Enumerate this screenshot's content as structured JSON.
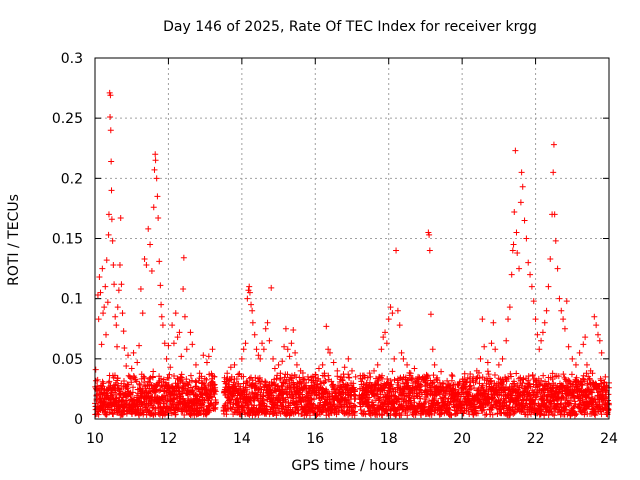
{
  "chart_data": {
    "type": "scatter",
    "title": "Day 146 of 2025, Rate Of TEC Index for receiver krgg",
    "xlabel": "GPS time / hours",
    "ylabel": "ROTI / TECUs",
    "xlim": [
      10,
      24
    ],
    "ylim": [
      0,
      0.3
    ],
    "x_ticks": [
      10,
      12,
      14,
      16,
      18,
      20,
      22,
      24
    ],
    "x_tick_labels": [
      "10",
      "12",
      "14",
      "16",
      "18",
      "20",
      "22",
      "24"
    ],
    "y_ticks": [
      0,
      0.05,
      0.1,
      0.15,
      0.2,
      0.25,
      0.3
    ],
    "y_tick_labels": [
      "0",
      "0.05",
      "0.1",
      "0.15",
      "0.2",
      "0.25",
      "0.3"
    ],
    "grid": true,
    "marker": "plus",
    "color": "#ff0000",
    "series": [
      {
        "points": [
          [
            10.02,
            0.041
          ],
          [
            10.05,
            0.02
          ],
          [
            10.08,
            0.103
          ],
          [
            10.1,
            0.083
          ],
          [
            10.12,
            0.118
          ],
          [
            10.15,
            0.105
          ],
          [
            10.18,
            0.062
          ],
          [
            10.2,
            0.125
          ],
          [
            10.22,
            0.088
          ],
          [
            10.25,
            0.093
          ],
          [
            10.28,
            0.11
          ],
          [
            10.3,
            0.07
          ],
          [
            10.32,
            0.132
          ],
          [
            10.35,
            0.097
          ],
          [
            10.37,
            0.153
          ],
          [
            10.38,
            0.17
          ],
          [
            10.4,
            0.271
          ],
          [
            10.41,
            0.251
          ],
          [
            10.42,
            0.269
          ],
          [
            10.43,
            0.24
          ],
          [
            10.44,
            0.214
          ],
          [
            10.45,
            0.19
          ],
          [
            10.46,
            0.166
          ],
          [
            10.48,
            0.148
          ],
          [
            10.5,
            0.128
          ],
          [
            10.52,
            0.112
          ],
          [
            10.55,
            0.085
          ],
          [
            10.58,
            0.078
          ],
          [
            10.6,
            0.06
          ],
          [
            10.62,
            0.093
          ],
          [
            10.65,
            0.107
          ],
          [
            10.68,
            0.128
          ],
          [
            10.7,
            0.167
          ],
          [
            10.72,
            0.112
          ],
          [
            10.75,
            0.088
          ],
          [
            10.78,
            0.073
          ],
          [
            10.8,
            0.059
          ],
          [
            10.85,
            0.044
          ],
          [
            10.9,
            0.053
          ],
          [
            10.95,
            0.035
          ],
          [
            11.0,
            0.042
          ],
          [
            11.05,
            0.055
          ],
          [
            11.1,
            0.033
          ],
          [
            11.15,
            0.047
          ],
          [
            11.2,
            0.061
          ],
          [
            11.25,
            0.108
          ],
          [
            11.3,
            0.088
          ],
          [
            11.35,
            0.133
          ],
          [
            11.4,
            0.128
          ],
          [
            11.45,
            0.158
          ],
          [
            11.5,
            0.145
          ],
          [
            11.55,
            0.123
          ],
          [
            11.6,
            0.176
          ],
          [
            11.62,
            0.207
          ],
          [
            11.64,
            0.22
          ],
          [
            11.65,
            0.215
          ],
          [
            11.68,
            0.2
          ],
          [
            11.7,
            0.185
          ],
          [
            11.72,
            0.167
          ],
          [
            11.75,
            0.131
          ],
          [
            11.78,
            0.111
          ],
          [
            11.8,
            0.095
          ],
          [
            11.82,
            0.085
          ],
          [
            11.85,
            0.078
          ],
          [
            11.9,
            0.063
          ],
          [
            11.95,
            0.05
          ],
          [
            12.0,
            0.061
          ],
          [
            12.05,
            0.043
          ],
          [
            12.1,
            0.078
          ],
          [
            12.15,
            0.063
          ],
          [
            12.2,
            0.088
          ],
          [
            12.25,
            0.068
          ],
          [
            12.3,
            0.072
          ],
          [
            12.35,
            0.052
          ],
          [
            12.4,
            0.108
          ],
          [
            12.42,
            0.134
          ],
          [
            12.45,
            0.085
          ],
          [
            12.5,
            0.058
          ],
          [
            12.6,
            0.072
          ],
          [
            12.65,
            0.062
          ],
          [
            12.75,
            0.045
          ],
          [
            12.85,
            0.038
          ],
          [
            12.95,
            0.053
          ],
          [
            13.05,
            0.047
          ],
          [
            13.1,
            0.052
          ],
          [
            13.2,
            0.058
          ],
          [
            13.25,
            0.035
          ],
          [
            13.6,
            0.038
          ],
          [
            13.7,
            0.043
          ],
          [
            13.8,
            0.045
          ],
          [
            13.9,
            0.037
          ],
          [
            14.0,
            0.05
          ],
          [
            14.05,
            0.058
          ],
          [
            14.1,
            0.063
          ],
          [
            14.15,
            0.1
          ],
          [
            14.18,
            0.107
          ],
          [
            14.2,
            0.11
          ],
          [
            14.22,
            0.105
          ],
          [
            14.25,
            0.095
          ],
          [
            14.28,
            0.09
          ],
          [
            14.3,
            0.08
          ],
          [
            14.35,
            0.07
          ],
          [
            14.4,
            0.058
          ],
          [
            14.45,
            0.053
          ],
          [
            14.5,
            0.05
          ],
          [
            14.55,
            0.063
          ],
          [
            14.6,
            0.058
          ],
          [
            14.65,
            0.075
          ],
          [
            14.7,
            0.08
          ],
          [
            14.75,
            0.065
          ],
          [
            14.8,
            0.109
          ],
          [
            14.85,
            0.05
          ],
          [
            14.9,
            0.042
          ],
          [
            15.0,
            0.045
          ],
          [
            15.05,
            0.038
          ],
          [
            15.1,
            0.048
          ],
          [
            15.15,
            0.06
          ],
          [
            15.2,
            0.075
          ],
          [
            15.25,
            0.058
          ],
          [
            15.3,
            0.052
          ],
          [
            15.35,
            0.063
          ],
          [
            15.4,
            0.074
          ],
          [
            15.45,
            0.055
          ],
          [
            15.5,
            0.045
          ],
          [
            15.6,
            0.04
          ],
          [
            15.7,
            0.033
          ],
          [
            15.8,
            0.035
          ],
          [
            15.9,
            0.032
          ],
          [
            16.0,
            0.037
          ],
          [
            16.1,
            0.042
          ],
          [
            16.2,
            0.045
          ],
          [
            16.25,
            0.038
          ],
          [
            16.3,
            0.077
          ],
          [
            16.35,
            0.058
          ],
          [
            16.4,
            0.055
          ],
          [
            16.5,
            0.047
          ],
          [
            16.6,
            0.04
          ],
          [
            16.7,
            0.035
          ],
          [
            16.8,
            0.043
          ],
          [
            16.9,
            0.05
          ],
          [
            17.0,
            0.04
          ],
          [
            17.1,
            0.035
          ],
          [
            17.3,
            0.025
          ],
          [
            17.4,
            0.03
          ],
          [
            17.5,
            0.035
          ],
          [
            17.6,
            0.04
          ],
          [
            17.7,
            0.045
          ],
          [
            17.8,
            0.058
          ],
          [
            17.85,
            0.068
          ],
          [
            17.9,
            0.072
          ],
          [
            17.95,
            0.063
          ],
          [
            18.0,
            0.083
          ],
          [
            18.05,
            0.093
          ],
          [
            18.1,
            0.088
          ],
          [
            18.15,
            0.05
          ],
          [
            18.2,
            0.14
          ],
          [
            18.25,
            0.09
          ],
          [
            18.3,
            0.078
          ],
          [
            18.35,
            0.055
          ],
          [
            18.4,
            0.05
          ],
          [
            18.5,
            0.045
          ],
          [
            18.6,
            0.038
          ],
          [
            18.7,
            0.042
          ],
          [
            18.8,
            0.035
          ],
          [
            18.9,
            0.033
          ],
          [
            19.0,
            0.03
          ],
          [
            19.05,
            0.035
          ],
          [
            19.08,
            0.155
          ],
          [
            19.1,
            0.153
          ],
          [
            19.12,
            0.14
          ],
          [
            19.15,
            0.087
          ],
          [
            19.2,
            0.058
          ],
          [
            19.25,
            0.045
          ],
          [
            19.3,
            0.033
          ],
          [
            19.5,
            0.025
          ],
          [
            19.7,
            0.02
          ],
          [
            19.9,
            0.022
          ],
          [
            20.1,
            0.025
          ],
          [
            20.2,
            0.027
          ],
          [
            20.3,
            0.035
          ],
          [
            20.4,
            0.04
          ],
          [
            20.5,
            0.05
          ],
          [
            20.55,
            0.083
          ],
          [
            20.6,
            0.06
          ],
          [
            20.7,
            0.047
          ],
          [
            20.8,
            0.063
          ],
          [
            20.85,
            0.08
          ],
          [
            20.9,
            0.058
          ],
          [
            21.0,
            0.045
          ],
          [
            21.1,
            0.05
          ],
          [
            21.2,
            0.065
          ],
          [
            21.25,
            0.083
          ],
          [
            21.3,
            0.093
          ],
          [
            21.35,
            0.12
          ],
          [
            21.38,
            0.14
          ],
          [
            21.4,
            0.145
          ],
          [
            21.42,
            0.172
          ],
          [
            21.45,
            0.223
          ],
          [
            21.48,
            0.155
          ],
          [
            21.5,
            0.138
          ],
          [
            21.55,
            0.125
          ],
          [
            21.6,
            0.18
          ],
          [
            21.62,
            0.205
          ],
          [
            21.65,
            0.193
          ],
          [
            21.7,
            0.165
          ],
          [
            21.75,
            0.15
          ],
          [
            21.8,
            0.13
          ],
          [
            21.85,
            0.12
          ],
          [
            21.9,
            0.11
          ],
          [
            21.95,
            0.098
          ],
          [
            22.0,
            0.083
          ],
          [
            22.05,
            0.07
          ],
          [
            22.1,
            0.058
          ],
          [
            22.15,
            0.065
          ],
          [
            22.2,
            0.072
          ],
          [
            22.25,
            0.08
          ],
          [
            22.3,
            0.09
          ],
          [
            22.35,
            0.11
          ],
          [
            22.4,
            0.133
          ],
          [
            22.45,
            0.17
          ],
          [
            22.48,
            0.205
          ],
          [
            22.5,
            0.228
          ],
          [
            22.52,
            0.17
          ],
          [
            22.55,
            0.148
          ],
          [
            22.6,
            0.125
          ],
          [
            22.65,
            0.1
          ],
          [
            22.7,
            0.09
          ],
          [
            22.75,
            0.083
          ],
          [
            22.8,
            0.075
          ],
          [
            22.85,
            0.098
          ],
          [
            22.9,
            0.06
          ],
          [
            23.0,
            0.05
          ],
          [
            23.1,
            0.045
          ],
          [
            23.2,
            0.055
          ],
          [
            23.3,
            0.062
          ],
          [
            23.35,
            0.068
          ],
          [
            23.4,
            0.045
          ],
          [
            23.5,
            0.04
          ],
          [
            23.55,
            0.038
          ],
          [
            23.6,
            0.085
          ],
          [
            23.65,
            0.078
          ],
          [
            23.7,
            0.07
          ],
          [
            23.75,
            0.065
          ],
          [
            23.8,
            0.055
          ],
          [
            23.9,
            0.035
          ],
          [
            24.0,
            0.03
          ]
        ]
      }
    ],
    "dense_band": {
      "segments": [
        [
          10.0,
          13.3
        ],
        [
          13.5,
          17.1
        ],
        [
          17.2,
          24.0
        ]
      ],
      "baseline_low": 0.003,
      "baseline_high": 0.025
    }
  }
}
